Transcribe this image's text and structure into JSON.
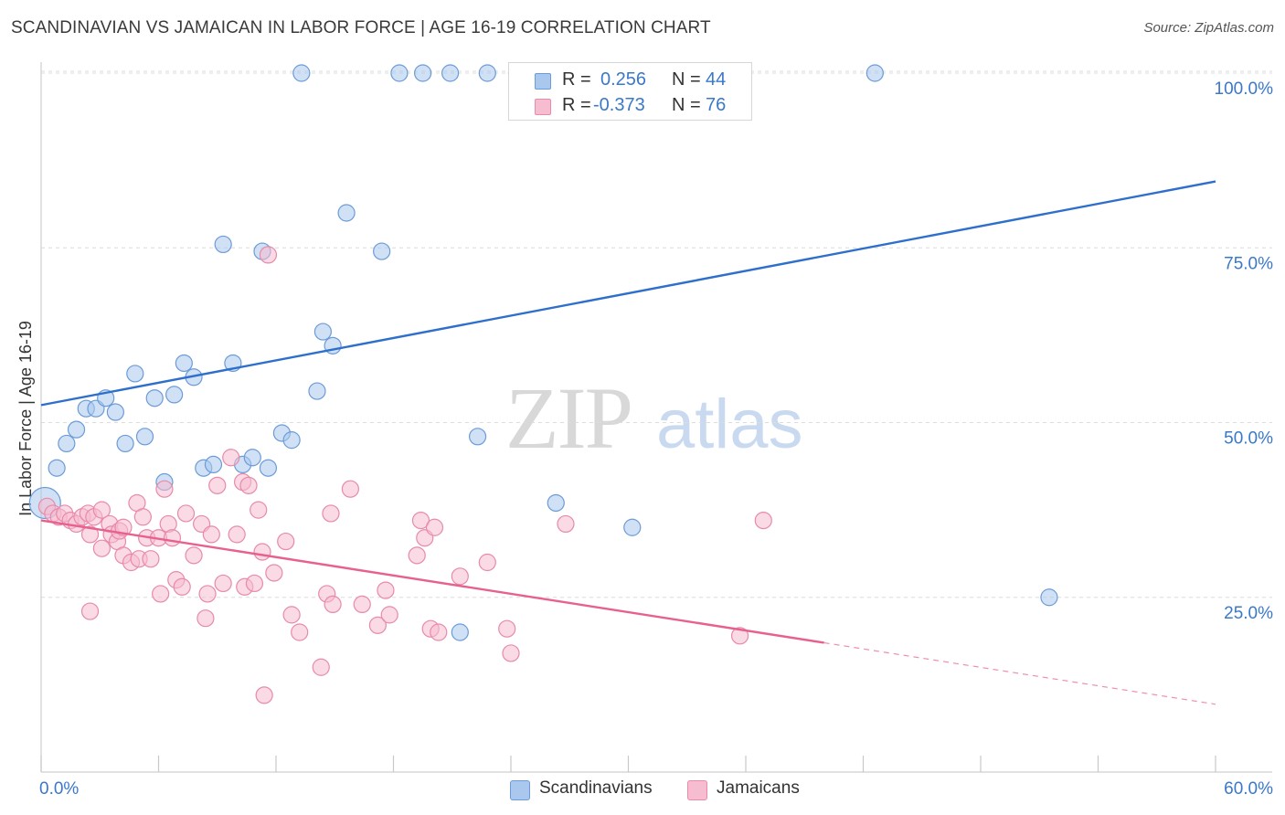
{
  "header": {
    "title": "SCANDINAVIAN VS JAMAICAN IN LABOR FORCE | AGE 16-19 CORRELATION CHART",
    "source": "Source: ZipAtlas.com"
  },
  "watermark": {
    "zip": "ZIP",
    "atlas": "atlas"
  },
  "legend": {
    "rows": [
      {
        "r_label": "R =",
        "r_value": "0.256",
        "n_label": "N =",
        "n_value": "44"
      },
      {
        "r_label": "R =",
        "r_value": "-0.373",
        "n_label": "N =",
        "n_value": "76"
      }
    ]
  },
  "bottom_legend": {
    "items": [
      "Scandinavians",
      "Jamaicans"
    ]
  },
  "colors": {
    "blue_fill": "#aac8ee",
    "blue_stroke": "#6b9bd8",
    "blue_line": "#2f6fcc",
    "pink_fill": "#f6bccf",
    "pink_stroke": "#e88aa8",
    "pink_line": "#e8608e",
    "tick_text": "#3a78c9",
    "grid": "#dcdcdc"
  },
  "chart_data": {
    "type": "scatter",
    "title": "SCANDINAVIAN VS JAMAICAN IN LABOR FORCE | AGE 16-19 CORRELATION CHART",
    "xlabel": "",
    "ylabel": "In Labor Force | Age 16-19",
    "xlim": [
      0,
      60
    ],
    "ylim": [
      0,
      102
    ],
    "x_tick_labels": [
      "0.0%",
      "60.0%"
    ],
    "y_tick_values": [
      25,
      50,
      75,
      100
    ],
    "y_tick_labels": [
      "25.0%",
      "50.0%",
      "75.0%",
      "100.0%"
    ],
    "grid": true,
    "series": [
      {
        "name": "Scandinavians",
        "r": 0.256,
        "n": 44,
        "trend": {
          "x": [
            0,
            60
          ],
          "y": [
            52.5,
            84.5
          ]
        },
        "points": [
          {
            "x": 0.2,
            "y": 38.5,
            "big": true
          },
          {
            "x": 0.8,
            "y": 43.5
          },
          {
            "x": 1.3,
            "y": 47
          },
          {
            "x": 1.8,
            "y": 49
          },
          {
            "x": 2.3,
            "y": 52
          },
          {
            "x": 2.8,
            "y": 52
          },
          {
            "x": 3.3,
            "y": 53.5
          },
          {
            "x": 3.8,
            "y": 51.5
          },
          {
            "x": 4.3,
            "y": 47
          },
          {
            "x": 4.8,
            "y": 57
          },
          {
            "x": 5.3,
            "y": 48
          },
          {
            "x": 5.8,
            "y": 53.5
          },
          {
            "x": 6.3,
            "y": 41.5
          },
          {
            "x": 6.8,
            "y": 54
          },
          {
            "x": 7.3,
            "y": 58.5
          },
          {
            "x": 7.8,
            "y": 56.5
          },
          {
            "x": 8.3,
            "y": 43.5
          },
          {
            "x": 8.8,
            "y": 44
          },
          {
            "x": 9.3,
            "y": 75.5
          },
          {
            "x": 9.8,
            "y": 58.5
          },
          {
            "x": 10.3,
            "y": 44
          },
          {
            "x": 10.8,
            "y": 45
          },
          {
            "x": 11.3,
            "y": 74.5
          },
          {
            "x": 11.6,
            "y": 43.5
          },
          {
            "x": 12.3,
            "y": 48.5
          },
          {
            "x": 12.8,
            "y": 47.5
          },
          {
            "x": 13.3,
            "y": 100
          },
          {
            "x": 14.1,
            "y": 54.5
          },
          {
            "x": 14.4,
            "y": 63
          },
          {
            "x": 14.9,
            "y": 61
          },
          {
            "x": 15.6,
            "y": 80
          },
          {
            "x": 17.4,
            "y": 74.5
          },
          {
            "x": 18.3,
            "y": 100
          },
          {
            "x": 19.5,
            "y": 100
          },
          {
            "x": 20.9,
            "y": 100
          },
          {
            "x": 21.4,
            "y": 20
          },
          {
            "x": 22.3,
            "y": 48
          },
          {
            "x": 22.8,
            "y": 100
          },
          {
            "x": 24.3,
            "y": 100
          },
          {
            "x": 25.8,
            "y": 100
          },
          {
            "x": 26.3,
            "y": 38.5
          },
          {
            "x": 30.2,
            "y": 35
          },
          {
            "x": 42.6,
            "y": 100
          },
          {
            "x": 51.5,
            "y": 25
          }
        ]
      },
      {
        "name": "Jamaicans",
        "r": -0.373,
        "n": 76,
        "trend": {
          "x": [
            0,
            40
          ],
          "y": [
            36,
            18.5
          ]
        },
        "trend_dashed": {
          "x": [
            40,
            60
          ],
          "y": [
            18.5,
            9.7
          ]
        },
        "points": [
          {
            "x": 0.3,
            "y": 38
          },
          {
            "x": 0.6,
            "y": 37
          },
          {
            "x": 0.9,
            "y": 36.5
          },
          {
            "x": 1.2,
            "y": 37
          },
          {
            "x": 1.5,
            "y": 36
          },
          {
            "x": 1.8,
            "y": 35.5
          },
          {
            "x": 2.1,
            "y": 36.5
          },
          {
            "x": 2.4,
            "y": 37
          },
          {
            "x": 2.7,
            "y": 36.5
          },
          {
            "x": 2.5,
            "y": 23
          },
          {
            "x": 2.5,
            "y": 34
          },
          {
            "x": 3.1,
            "y": 37.5
          },
          {
            "x": 3.1,
            "y": 32
          },
          {
            "x": 3.5,
            "y": 35.5
          },
          {
            "x": 3.6,
            "y": 34
          },
          {
            "x": 3.9,
            "y": 33
          },
          {
            "x": 4.0,
            "y": 34.5
          },
          {
            "x": 4.2,
            "y": 35
          },
          {
            "x": 4.2,
            "y": 31
          },
          {
            "x": 4.6,
            "y": 30
          },
          {
            "x": 4.9,
            "y": 38.5
          },
          {
            "x": 5.0,
            "y": 30.5
          },
          {
            "x": 5.2,
            "y": 36.5
          },
          {
            "x": 5.4,
            "y": 33.5
          },
          {
            "x": 5.6,
            "y": 30.5
          },
          {
            "x": 6.0,
            "y": 33.5
          },
          {
            "x": 6.1,
            "y": 25.5
          },
          {
            "x": 6.3,
            "y": 40.5
          },
          {
            "x": 6.5,
            "y": 35.5
          },
          {
            "x": 6.7,
            "y": 33.5
          },
          {
            "x": 6.9,
            "y": 27.5
          },
          {
            "x": 7.2,
            "y": 26.5
          },
          {
            "x": 7.4,
            "y": 37
          },
          {
            "x": 7.8,
            "y": 31
          },
          {
            "x": 8.2,
            "y": 35.5
          },
          {
            "x": 8.4,
            "y": 22
          },
          {
            "x": 8.5,
            "y": 25.5
          },
          {
            "x": 8.7,
            "y": 34
          },
          {
            "x": 9.0,
            "y": 41
          },
          {
            "x": 9.3,
            "y": 27
          },
          {
            "x": 9.7,
            "y": 45
          },
          {
            "x": 10.0,
            "y": 34
          },
          {
            "x": 10.3,
            "y": 41.5
          },
          {
            "x": 10.4,
            "y": 26.5
          },
          {
            "x": 10.6,
            "y": 41
          },
          {
            "x": 10.9,
            "y": 27
          },
          {
            "x": 11.1,
            "y": 37.5
          },
          {
            "x": 11.3,
            "y": 31.5
          },
          {
            "x": 11.4,
            "y": 11
          },
          {
            "x": 11.6,
            "y": 74
          },
          {
            "x": 11.9,
            "y": 28.5
          },
          {
            "x": 12.5,
            "y": 33
          },
          {
            "x": 12.8,
            "y": 22.5
          },
          {
            "x": 13.2,
            "y": 20
          },
          {
            "x": 14.3,
            "y": 15
          },
          {
            "x": 14.6,
            "y": 25.5
          },
          {
            "x": 14.8,
            "y": 37
          },
          {
            "x": 14.9,
            "y": 24
          },
          {
            "x": 15.8,
            "y": 40.5
          },
          {
            "x": 16.4,
            "y": 24
          },
          {
            "x": 17.2,
            "y": 21
          },
          {
            "x": 17.6,
            "y": 26
          },
          {
            "x": 17.8,
            "y": 22.5
          },
          {
            "x": 19.2,
            "y": 31
          },
          {
            "x": 19.4,
            "y": 36
          },
          {
            "x": 19.6,
            "y": 33.5
          },
          {
            "x": 19.9,
            "y": 20.5
          },
          {
            "x": 20.1,
            "y": 35
          },
          {
            "x": 20.3,
            "y": 20
          },
          {
            "x": 21.4,
            "y": 28
          },
          {
            "x": 22.8,
            "y": 30
          },
          {
            "x": 23.8,
            "y": 20.5
          },
          {
            "x": 24.0,
            "y": 17
          },
          {
            "x": 26.8,
            "y": 35.5
          },
          {
            "x": 35.7,
            "y": 19.5
          },
          {
            "x": 36.9,
            "y": 36
          }
        ]
      }
    ]
  }
}
